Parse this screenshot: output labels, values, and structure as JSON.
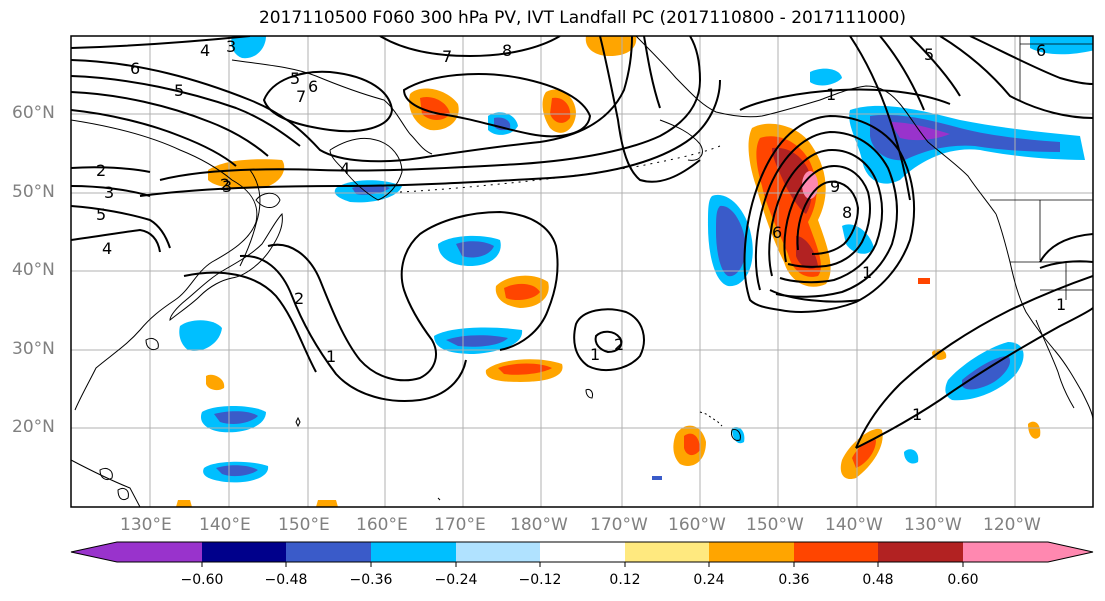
{
  "title": "2017110500 F060 300 hPa PV, IVT Landfall PC (2017110800 - 2017111000)",
  "lat_labels": [
    "60°N",
    "50°N",
    "40°N",
    "30°N",
    "20°N"
  ],
  "lon_labels": [
    "130°E",
    "140°E",
    "150°E",
    "160°E",
    "170°E",
    "180°W",
    "170°W",
    "160°W",
    "150°W",
    "140°W",
    "130°W",
    "120°W"
  ],
  "colorbar": {
    "ticks": [
      "−0.60",
      "−0.48",
      "−0.36",
      "−0.24",
      "−0.12",
      "0.12",
      "0.24",
      "0.36",
      "0.48",
      "0.60"
    ],
    "colors": [
      "#9933cc",
      "#00008b",
      "#3a5bc9",
      "#00bfff",
      "#b0e2ff",
      "#ffffff",
      "#ffe97f",
      "#ffa500",
      "#ff4500",
      "#b22222",
      "#ff88b0"
    ]
  },
  "contour_labels": [
    "6",
    "5",
    "4",
    "3",
    "2",
    "3",
    "5",
    "4",
    "2",
    "4",
    "5",
    "6",
    "7",
    "8",
    "7",
    "3",
    "2",
    "1",
    "2",
    "1",
    "1",
    "9",
    "6",
    "8",
    "1",
    "1",
    "1",
    "5",
    "6"
  ],
  "colors": {
    "coast": "#000000",
    "grid": "#b0b0b0",
    "contour": "#000000"
  }
}
